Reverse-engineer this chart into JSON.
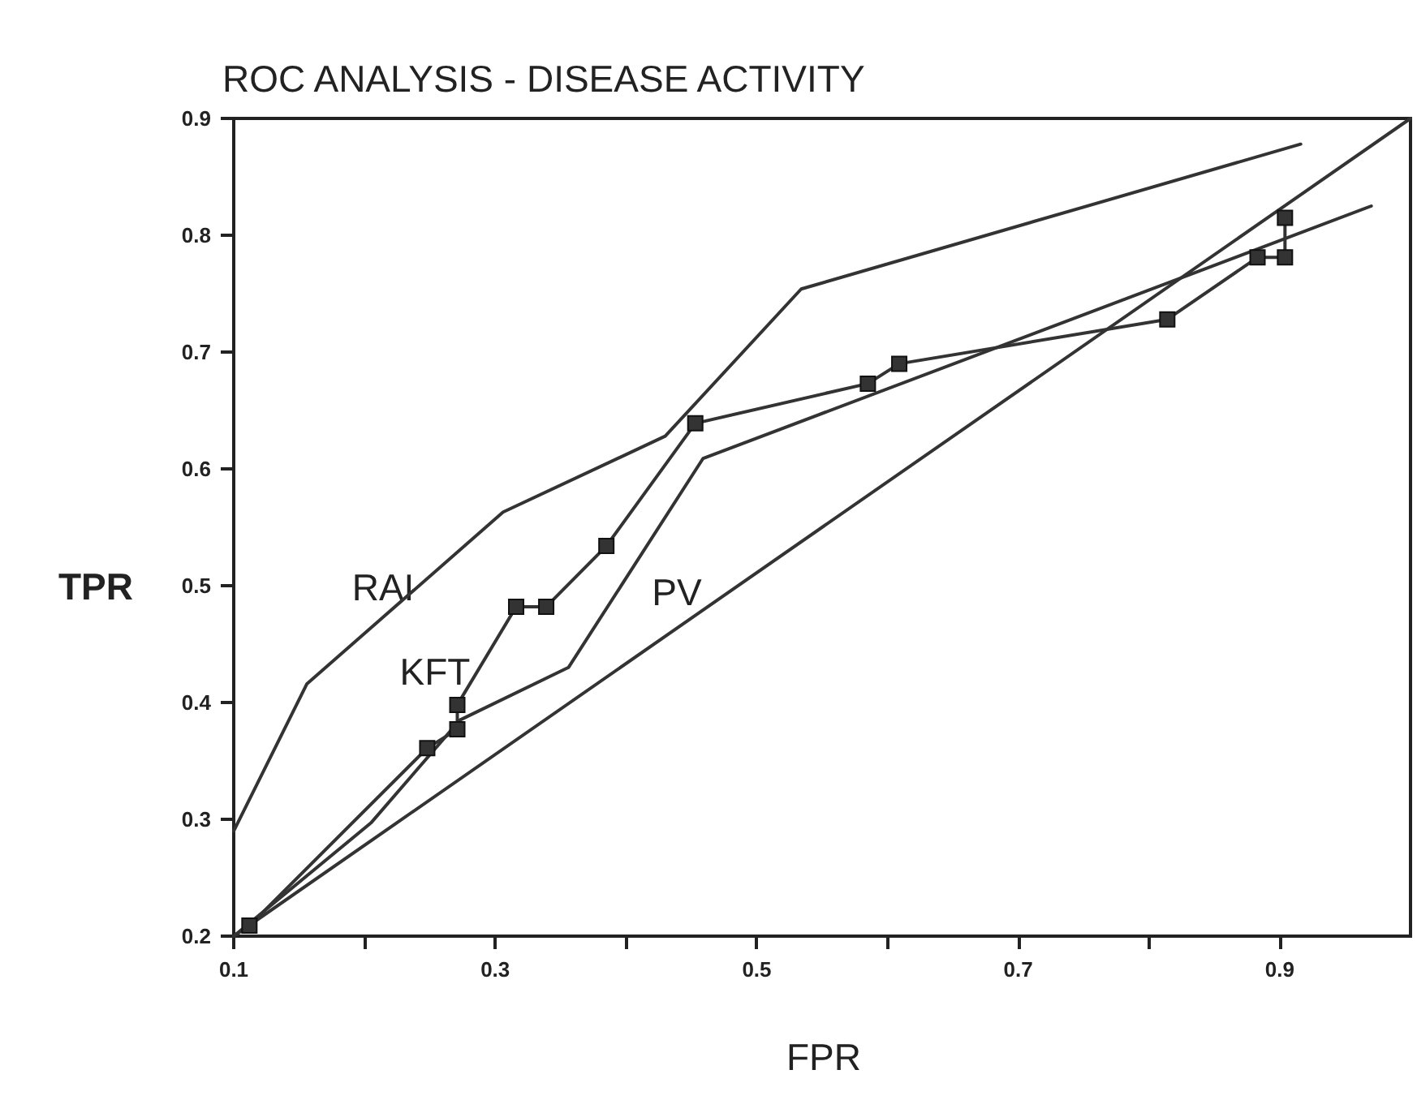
{
  "chart_data": {
    "type": "line",
    "title": "ROC ANALYSIS - DISEASE ACTIVITY",
    "xlabel": "FPR",
    "ylabel": "TPR",
    "xlim": [
      0.1,
      1.0
    ],
    "ylim": [
      0.2,
      0.9
    ],
    "xticks": [
      0.1,
      {
        "value": 0.2,
        "label": null
      },
      0.3,
      {
        "value": 0.4,
        "label": null
      },
      0.5,
      {
        "value": 0.6,
        "label": null
      },
      0.7,
      {
        "value": 0.8,
        "label": null
      },
      0.9
    ],
    "yticks": [
      0.2,
      0.3,
      0.4,
      0.5,
      0.6,
      0.7,
      0.8,
      0.9
    ],
    "grid": false,
    "line_style": "solid",
    "series": [
      {
        "color": "#333333",
        "marker": "none",
        "x": [
          0.1,
          0.156,
          0.306,
          0.43,
          0.534,
          0.916
        ],
        "values": [
          0.29,
          0.416,
          0.563,
          0.628,
          0.754,
          0.878
        ]
      },
      {
        "color": "#333333",
        "marker": "square",
        "x": [
          0.112,
          0.248,
          0.271,
          0.271,
          0.316,
          0.339,
          0.385,
          0.453,
          0.585,
          0.609,
          0.814,
          0.883,
          0.904,
          0.904
        ],
        "values": [
          0.209,
          0.361,
          0.377,
          0.398,
          0.482,
          0.482,
          0.534,
          0.639,
          0.673,
          0.69,
          0.728,
          0.781,
          0.781,
          0.815
        ]
      },
      {
        "color": "#333333",
        "marker": "none",
        "x": [
          0.1,
          0.205,
          0.273,
          0.356,
          0.459,
          0.97
        ],
        "values": [
          0.2,
          0.297,
          0.385,
          0.43,
          0.609,
          0.825
        ]
      },
      {
        "color": "#333333",
        "marker": "none",
        "x": [
          0.1,
          1.0
        ],
        "values": [
          0.2,
          0.9
        ]
      }
    ],
    "annotations": [
      "RAI",
      "KFT",
      "PV"
    ]
  }
}
